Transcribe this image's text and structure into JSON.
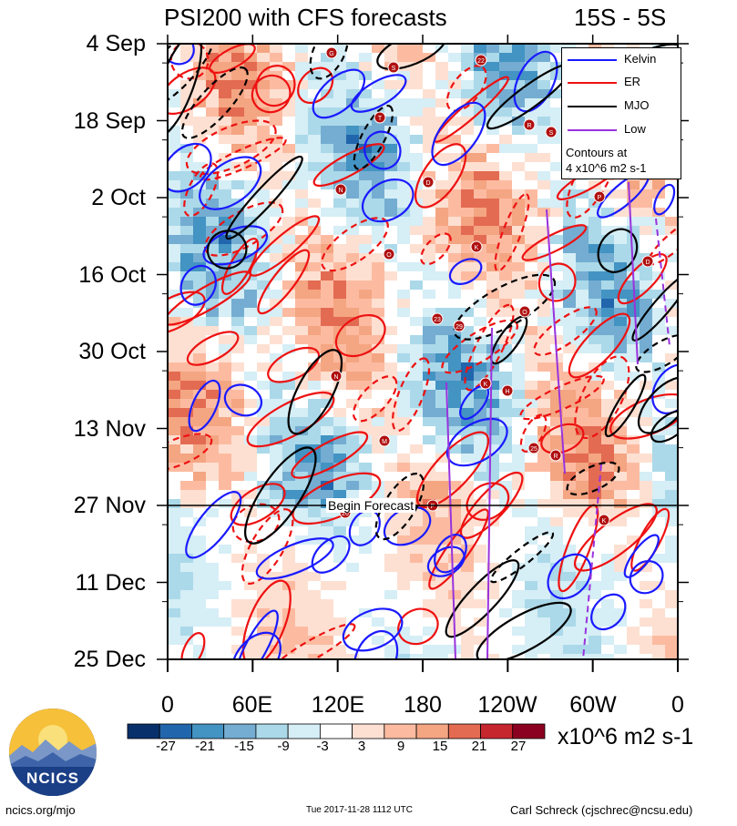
{
  "header": {
    "title": "PSI200 with CFS forecasts",
    "region": "15S - 5S"
  },
  "axes": {
    "y_labels": [
      "4 Sep",
      "18 Sep",
      "2 Oct",
      "16 Oct",
      "30 Oct",
      "13 Nov",
      "27 Nov",
      "11 Dec",
      "25 Dec"
    ],
    "x_labels": [
      "0",
      "60E",
      "120E",
      "180",
      "120W",
      "60W",
      "0"
    ]
  },
  "forecast_marker": "Begin Forecast",
  "legend": {
    "items": [
      {
        "label": "Kelvin",
        "color": "#1a1aff"
      },
      {
        "label": "ER",
        "color": "#ee1111"
      },
      {
        "label": "MJO",
        "color": "#000000"
      },
      {
        "label": "Low",
        "color": "#9933dd"
      }
    ],
    "note_line1": "Contours at",
    "note_line2": "4 x10^6 m2 s-1"
  },
  "colorbar": {
    "labels": [
      "-27",
      "-21",
      "-15",
      "-9",
      "-3",
      "3",
      "9",
      "15",
      "21",
      "27"
    ],
    "colors": [
      "#08306b",
      "#2166ac",
      "#4393c3",
      "#74add1",
      "#abd9e9",
      "#d6eef6",
      "#ffffff",
      "#fde0d2",
      "#fcbba1",
      "#f4a582",
      "#e36b52",
      "#c6262e",
      "#8b0020"
    ],
    "units": "x10^6 m2 s-1"
  },
  "footer": {
    "org": "NCICS",
    "url": "ncics.org/mjo",
    "timestamp": "Tue 2017-11-28 1112 UTC",
    "author": "Carl Schreck (cjschrec@ncsu.edu)"
  },
  "storms": [
    "G",
    "T",
    "D",
    "K",
    "O",
    "N",
    "M",
    "P",
    "22",
    "R",
    "N",
    "O",
    "23",
    "K",
    "25",
    "26",
    "S",
    "S",
    "P",
    "D",
    "29",
    "H",
    "R",
    "K"
  ],
  "chart_data": {
    "type": "heatmap",
    "title": "PSI200 with CFS forecasts",
    "subtitle": "15S - 5S",
    "x_ticks": [
      "0",
      "60E",
      "120E",
      "180",
      "120W",
      "60W",
      "0"
    ],
    "y_ticks": [
      "4 Sep",
      "18 Sep",
      "2 Oct",
      "16 Oct",
      "30 Oct",
      "13 Nov",
      "27 Nov",
      "11 Dec",
      "25 Dec"
    ],
    "x_range": [
      "0",
      "0"
    ],
    "y_range": [
      "4 Sep",
      "25 Dec"
    ],
    "forecast_start": "27 Nov",
    "color_levels": [
      -27,
      -21,
      -15,
      -9,
      -3,
      3,
      9,
      15,
      21,
      27
    ],
    "units": "x10^6 m2 s-1",
    "contour_interval": "4 x10^6 m2 s-1",
    "contour_series": [
      "Kelvin",
      "ER",
      "MJO",
      "Low"
    ],
    "colorbar_position": "bottom",
    "legend_position": "top-right"
  }
}
